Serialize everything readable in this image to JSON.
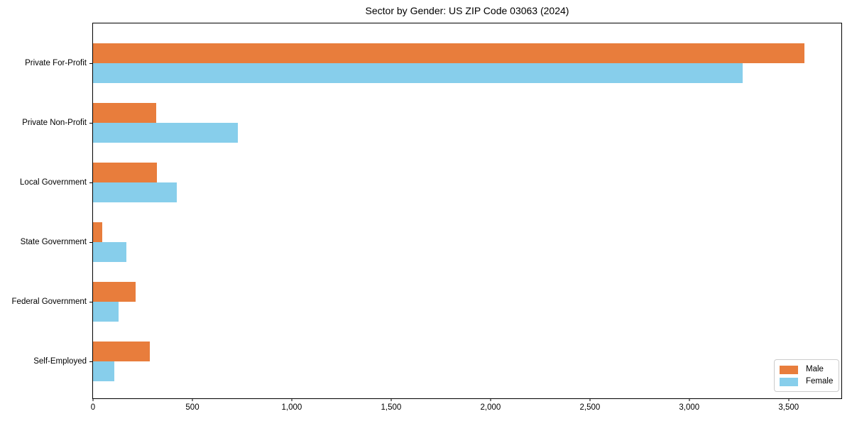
{
  "chart_data": {
    "type": "bar",
    "orientation": "horizontal",
    "title": "Sector by Gender: US ZIP Code 03063 (2024)",
    "categories": [
      "Private For-Profit",
      "Private Non-Profit",
      "Local Government",
      "State Government",
      "Federal Government",
      "Self-Employed"
    ],
    "series": [
      {
        "name": "Male",
        "color": "#e87d3c",
        "values": [
          3580,
          318,
          323,
          45,
          213,
          287
        ]
      },
      {
        "name": "Female",
        "color": "#87ceeb",
        "values": [
          3270,
          727,
          421,
          167,
          127,
          108
        ]
      }
    ],
    "xlim": [
      0,
      3765
    ],
    "xticks": {
      "values": [
        0,
        500,
        1000,
        1500,
        2000,
        2500,
        3000,
        3500
      ],
      "labels": [
        "0",
        "500",
        "1,000",
        "1,500",
        "2,000",
        "2,500",
        "3,000",
        "3,500"
      ]
    },
    "xlabel": "",
    "ylabel": "",
    "grid": false,
    "legend": {
      "position": "lower right",
      "entries": [
        "Male",
        "Female"
      ]
    }
  }
}
